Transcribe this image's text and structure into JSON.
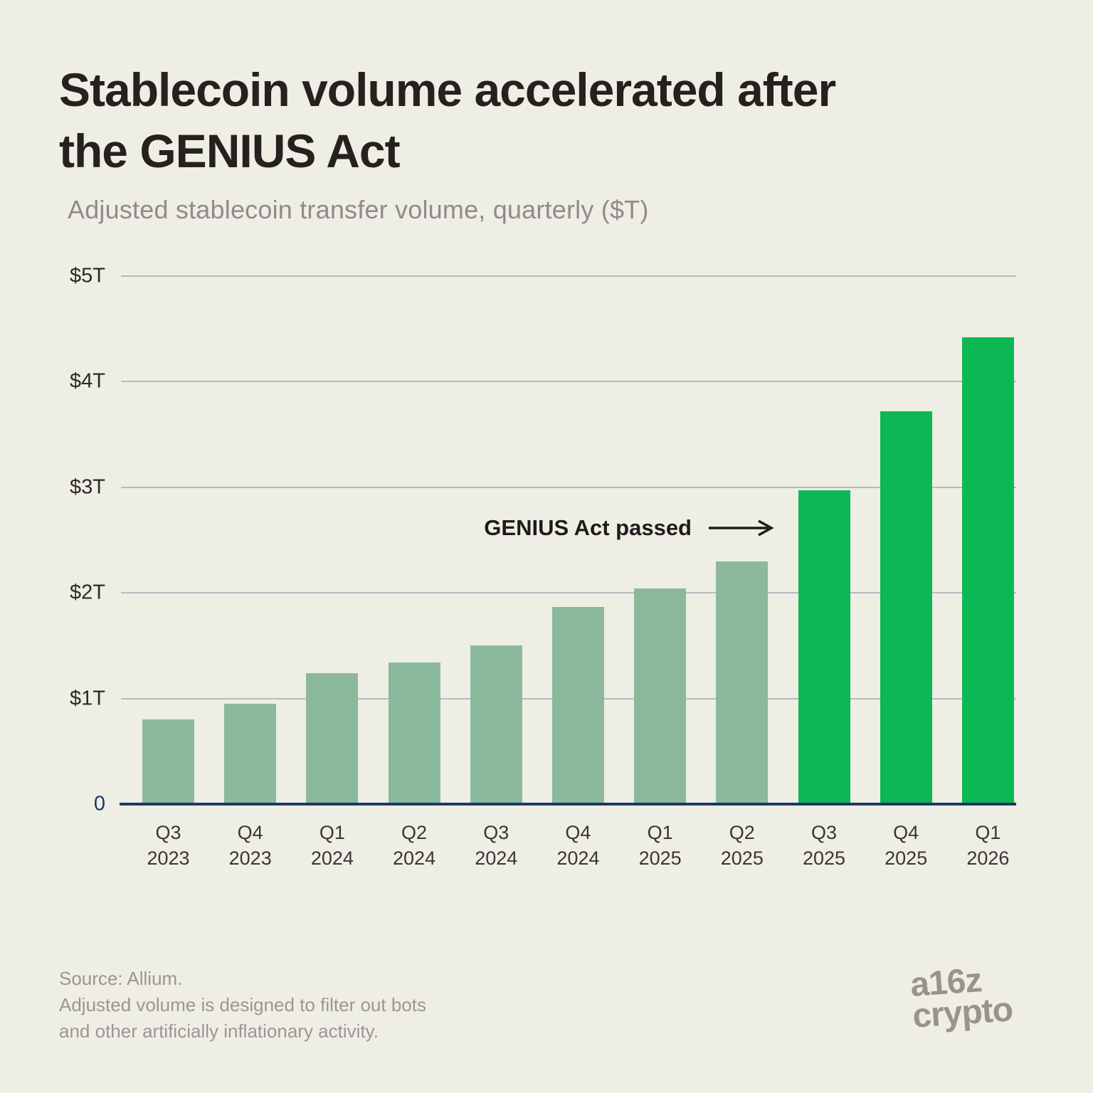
{
  "page": {
    "background_color": "#EFEEE5"
  },
  "header": {
    "title_lines": [
      "Stablecoin volume accelerated after",
      "the GENIUS Act"
    ],
    "subtitle": "Adjusted stablecoin transfer volume, quarterly ($T)"
  },
  "chart_data": {
    "type": "bar",
    "title": "Stablecoin volume accelerated after the GENIUS Act",
    "subtitle": "Adjusted stablecoin transfer volume, quarterly ($T)",
    "xlabel": "",
    "ylabel": "Adjusted stablecoin transfer volume ($T)",
    "ylim": [
      0,
      5
    ],
    "ytick_values": [
      0,
      1,
      2,
      3,
      4,
      5
    ],
    "ytick_labels": [
      "0",
      "$1T",
      "$2T",
      "$3T",
      "$4T",
      "$5T"
    ],
    "grid": true,
    "categories": [
      "Q3 2023",
      "Q4 2023",
      "Q1 2024",
      "Q2 2024",
      "Q3 2024",
      "Q4 2024",
      "Q1 2025",
      "Q2 2025",
      "Q3 2025",
      "Q4 2025",
      "Q1 2026"
    ],
    "values": [
      0.8,
      0.95,
      1.24,
      1.34,
      1.5,
      1.87,
      2.04,
      2.3,
      2.97,
      3.72,
      4.42
    ],
    "highlight_start_index": 8,
    "bar_color_before": "#8BB99C",
    "bar_color_after": "#0CB853",
    "gridline_color": "#B4BAC2",
    "baseline_color": "#1C3A60",
    "annotation": {
      "text": "GENIUS Act passed",
      "icon": "right-arrow",
      "points_to_category": "Q3 2025"
    },
    "legend": null
  },
  "annotation": {
    "text": "GENIUS Act passed"
  },
  "footer": {
    "source_lines": [
      "Source: Allium.",
      "Adjusted volume is designed to filter out bots",
      "and other artificially inflationary activity."
    ],
    "logo_line1": "a16z",
    "logo_line2": "crypto"
  },
  "colors": {
    "background": "#EFEEE5",
    "title": "#25211F",
    "subtitle": "#908A8C",
    "bar_muted": "#8BB99C",
    "bar_highlight": "#0CB853",
    "gridline": "#B4BAC2",
    "axis_navy": "#1C3A60",
    "tick_text": "#2D292A",
    "footer_text": "#9C9496",
    "logo_gray": "#9A9389"
  }
}
